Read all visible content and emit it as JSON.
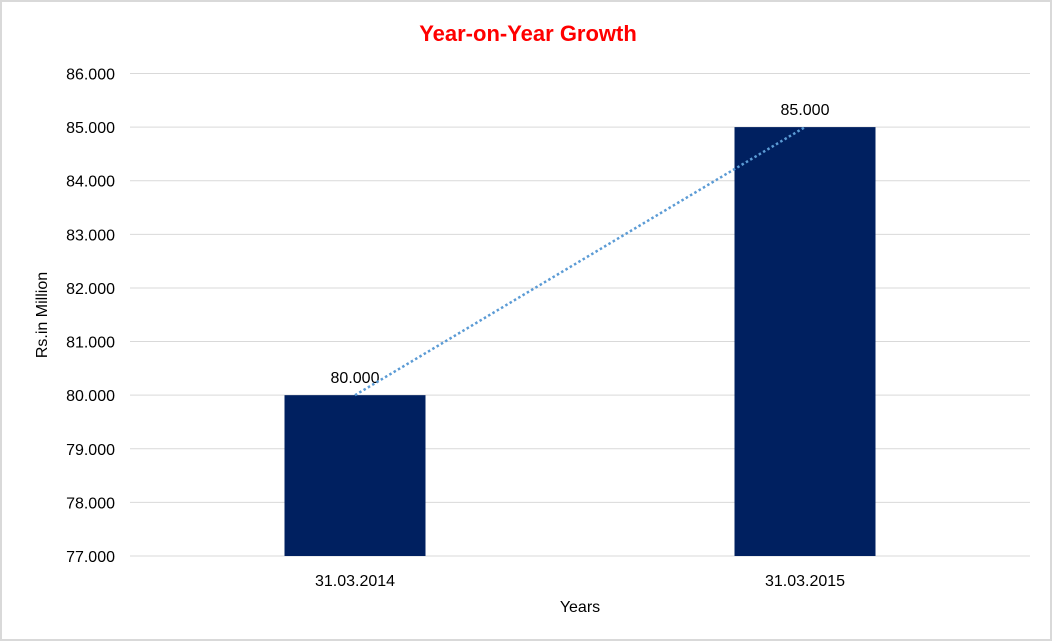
{
  "chart_data": {
    "type": "bar",
    "title": "Year-on-Year Growth",
    "xlabel": "Years",
    "ylabel": "Rs.in Million",
    "categories": [
      "31.03.2014",
      "31.03.2015"
    ],
    "values": [
      80,
      85
    ],
    "data_labels": [
      "80.000",
      "85.000"
    ],
    "ylim": [
      77,
      86
    ],
    "yticks": [
      "77.000",
      "78.000",
      "79.000",
      "80.000",
      "81.000",
      "82.000",
      "83.000",
      "84.000",
      "85.000",
      "86.000"
    ],
    "grid": true,
    "trendline": {
      "type": "linear",
      "style": "dotted",
      "color": "#5b9bd5"
    },
    "colors": {
      "bar": "#002060",
      "title": "#ff0000",
      "grid": "#d9d9d9"
    }
  }
}
